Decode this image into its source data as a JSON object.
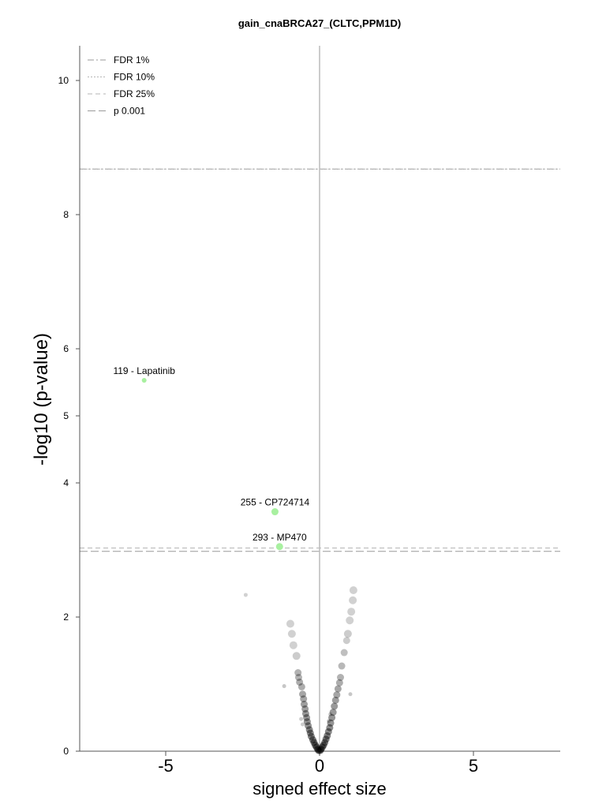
{
  "chart_data": {
    "type": "scatter",
    "title": "gain_cnaBRCA27_(CLTC,PPM1D)",
    "xlabel": "signed effect size",
    "ylabel": "-log10 (p-value)",
    "xlim": [
      -7.5,
      7.8
    ],
    "ylim": [
      0,
      10.55
    ],
    "xticks": [
      -5,
      0,
      5
    ],
    "yticks": [
      0,
      2,
      4,
      5,
      6,
      8,
      10
    ],
    "legend_position": "top-left",
    "thresholds": [
      {
        "name": "FDR 1%",
        "y": 8.68,
        "style": "dashdot",
        "color": "#9a9a9a"
      },
      {
        "name": "FDR 10%",
        "y": 8.68,
        "style": "dotted",
        "color": "#b5b5b5"
      },
      {
        "name": "FDR 25%",
        "y": 3.03,
        "style": "dashed",
        "color": "#b5b5b5"
      },
      {
        "name": "p 0.001",
        "y": 2.98,
        "style": "longdash",
        "color": "#9a9a9a"
      }
    ],
    "highlighted": [
      {
        "label": "119 - Lapatinib",
        "x": -5.7,
        "y": 5.53,
        "r": 3,
        "color": "#a8f0a0"
      },
      {
        "label": "255 - CP724714",
        "x": -1.45,
        "y": 3.57,
        "r": 4.5,
        "color": "#a8f0a0"
      },
      {
        "label": "293 - MP470",
        "x": -1.3,
        "y": 3.05,
        "r": 4.5,
        "color": "#a8f0a0"
      }
    ],
    "background_points": [
      {
        "x": -2.4,
        "y": 2.33,
        "r": 2.5,
        "o": 0.18
      },
      {
        "x": -1.15,
        "y": 0.97,
        "r": 2.5,
        "o": 0.22
      },
      {
        "x": 1.0,
        "y": 0.85,
        "r": 2.5,
        "o": 0.22
      },
      {
        "x": -0.95,
        "y": 1.9,
        "r": 5,
        "o": 0.18
      },
      {
        "x": -0.9,
        "y": 1.75,
        "r": 5,
        "o": 0.18
      },
      {
        "x": -0.85,
        "y": 1.58,
        "r": 5,
        "o": 0.18
      },
      {
        "x": -0.75,
        "y": 1.42,
        "r": 5,
        "o": 0.2
      },
      {
        "x": -0.7,
        "y": 1.17,
        "r": 4.5,
        "o": 0.3
      },
      {
        "x": -0.68,
        "y": 1.1,
        "r": 4.5,
        "o": 0.3
      },
      {
        "x": -0.65,
        "y": 1.03,
        "r": 4.5,
        "o": 0.32
      },
      {
        "x": -0.58,
        "y": 0.96,
        "r": 4.5,
        "o": 0.32
      },
      {
        "x": -0.55,
        "y": 0.85,
        "r": 4.5,
        "o": 0.35
      },
      {
        "x": -0.52,
        "y": 0.78,
        "r": 4.5,
        "o": 0.35
      },
      {
        "x": -0.5,
        "y": 0.7,
        "r": 4.5,
        "o": 0.38
      },
      {
        "x": -0.47,
        "y": 0.63,
        "r": 4.5,
        "o": 0.38
      },
      {
        "x": -0.45,
        "y": 0.56,
        "r": 4.5,
        "o": 0.4
      },
      {
        "x": -0.42,
        "y": 0.5,
        "r": 4.5,
        "o": 0.4
      },
      {
        "x": -0.4,
        "y": 0.44,
        "r": 4.5,
        "o": 0.42
      },
      {
        "x": -0.6,
        "y": 0.48,
        "r": 2.5,
        "o": 0.2
      },
      {
        "x": -0.55,
        "y": 0.4,
        "r": 2.5,
        "o": 0.2
      },
      {
        "x": -0.37,
        "y": 0.38,
        "r": 4.5,
        "o": 0.42
      },
      {
        "x": -0.33,
        "y": 0.32,
        "r": 4.5,
        "o": 0.45
      },
      {
        "x": -0.3,
        "y": 0.27,
        "r": 4.5,
        "o": 0.45
      },
      {
        "x": -0.27,
        "y": 0.22,
        "r": 4.5,
        "o": 0.48
      },
      {
        "x": -0.22,
        "y": 0.17,
        "r": 4.5,
        "o": 0.5
      },
      {
        "x": -0.18,
        "y": 0.13,
        "r": 4.5,
        "o": 0.5
      },
      {
        "x": -0.14,
        "y": 0.09,
        "r": 4.5,
        "o": 0.5
      },
      {
        "x": -0.1,
        "y": 0.06,
        "r": 4.5,
        "o": 0.5
      },
      {
        "x": -0.06,
        "y": 0.03,
        "r": 4.5,
        "o": 0.5
      },
      {
        "x": -0.03,
        "y": 0.01,
        "r": 4.5,
        "o": 0.5
      },
      {
        "x": 1.1,
        "y": 2.4,
        "r": 5,
        "o": 0.18
      },
      {
        "x": 1.08,
        "y": 2.25,
        "r": 5,
        "o": 0.18
      },
      {
        "x": 1.03,
        "y": 2.08,
        "r": 5,
        "o": 0.18
      },
      {
        "x": 0.98,
        "y": 1.95,
        "r": 5,
        "o": 0.18
      },
      {
        "x": 0.92,
        "y": 1.75,
        "r": 5,
        "o": 0.2
      },
      {
        "x": 0.88,
        "y": 1.65,
        "r": 4.5,
        "o": 0.2
      },
      {
        "x": 0.8,
        "y": 1.47,
        "r": 4.5,
        "o": 0.25
      },
      {
        "x": 0.72,
        "y": 1.27,
        "r": 4.5,
        "o": 0.28
      },
      {
        "x": 0.68,
        "y": 1.1,
        "r": 4.5,
        "o": 0.3
      },
      {
        "x": 0.65,
        "y": 1.02,
        "r": 4.5,
        "o": 0.32
      },
      {
        "x": 0.6,
        "y": 0.93,
        "r": 4.5,
        "o": 0.35
      },
      {
        "x": 0.56,
        "y": 0.84,
        "r": 4.5,
        "o": 0.35
      },
      {
        "x": 0.52,
        "y": 0.76,
        "r": 4.5,
        "o": 0.38
      },
      {
        "x": 0.48,
        "y": 0.67,
        "r": 4.5,
        "o": 0.4
      },
      {
        "x": 0.44,
        "y": 0.58,
        "r": 4.5,
        "o": 0.4
      },
      {
        "x": 0.4,
        "y": 0.5,
        "r": 4.5,
        "o": 0.42
      },
      {
        "x": 0.36,
        "y": 0.42,
        "r": 4.5,
        "o": 0.42
      },
      {
        "x": 0.33,
        "y": 0.35,
        "r": 4.5,
        "o": 0.45
      },
      {
        "x": 0.29,
        "y": 0.29,
        "r": 4.5,
        "o": 0.45
      },
      {
        "x": 0.25,
        "y": 0.23,
        "r": 4.5,
        "o": 0.48
      },
      {
        "x": 0.21,
        "y": 0.18,
        "r": 4.5,
        "o": 0.5
      },
      {
        "x": 0.17,
        "y": 0.13,
        "r": 4.5,
        "o": 0.5
      },
      {
        "x": 0.13,
        "y": 0.09,
        "r": 4.5,
        "o": 0.5
      },
      {
        "x": 0.09,
        "y": 0.06,
        "r": 4.5,
        "o": 0.5
      },
      {
        "x": 0.05,
        "y": 0.03,
        "r": 4.5,
        "o": 0.5
      },
      {
        "x": 0.02,
        "y": 0.01,
        "r": 4.5,
        "o": 0.5
      },
      {
        "x": 0.3,
        "y": 0.45,
        "r": 2.5,
        "o": 0.22
      },
      {
        "x": 0.35,
        "y": 0.55,
        "r": 2.5,
        "o": 0.22
      }
    ]
  }
}
